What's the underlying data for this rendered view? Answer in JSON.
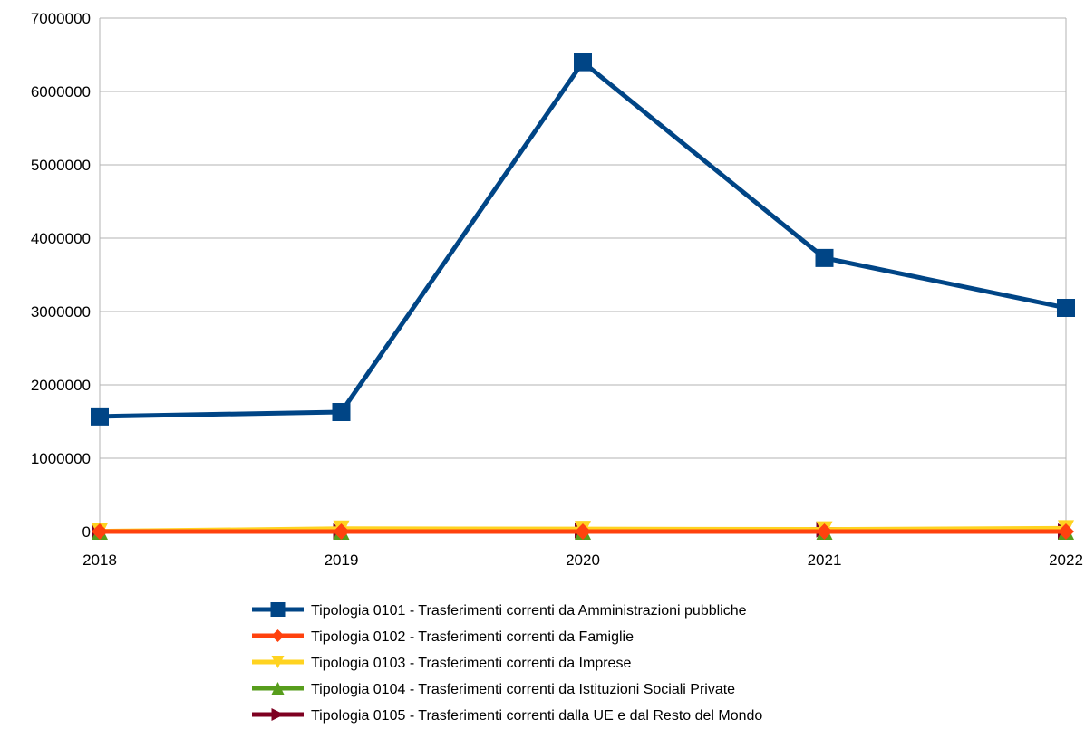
{
  "chart_data": {
    "type": "line",
    "title": "",
    "xlabel": "",
    "ylabel": "",
    "categories": [
      "2018",
      "2019",
      "2020",
      "2021",
      "2022"
    ],
    "ylim": [
      0,
      7000000
    ],
    "y_ticks": [
      "0",
      "1000000",
      "2000000",
      "3000000",
      "4000000",
      "5000000",
      "6000000",
      "7000000"
    ],
    "grid": true,
    "legend_position": "bottom",
    "series": [
      {
        "name": "Tipologia 0101 - Trasferimenti correnti da Amministrazioni pubbliche",
        "color": "#004586",
        "marker": "square",
        "values": [
          1570000,
          1630000,
          6400000,
          3730000,
          3050000
        ]
      },
      {
        "name": "Tipologia 0102 - Trasferimenti correnti da Famiglie",
        "color": "#ff420e",
        "marker": "diamond",
        "values": [
          0,
          0,
          0,
          0,
          0
        ]
      },
      {
        "name": "Tipologia 0103 - Trasferimenti correnti da Imprese",
        "color": "#ffd320",
        "marker": "triangle-down",
        "values": [
          5000,
          40000,
          35000,
          30000,
          45000
        ]
      },
      {
        "name": "Tipologia 0104 - Trasferimenti correnti da Istituzioni Sociali Private",
        "color": "#579d1c",
        "marker": "triangle-up",
        "values": [
          0,
          0,
          0,
          0,
          0
        ]
      },
      {
        "name": "Tipologia 0105 - Trasferimenti correnti dalla UE e dal Resto del Mondo",
        "color": "#7e0021",
        "marker": "triangle-right",
        "values": [
          0,
          0,
          15000,
          30000,
          0
        ]
      }
    ]
  }
}
